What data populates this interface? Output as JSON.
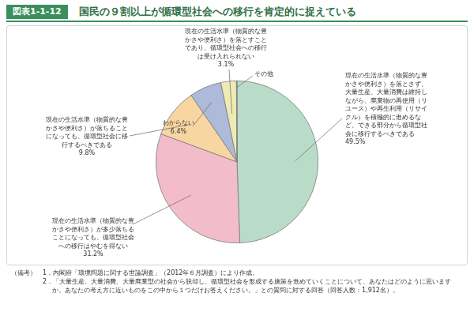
{
  "chart_data": {
    "type": "pie",
    "figure_number": "図表1-1-12",
    "title": "国民の９割以上が循環型社会への移行を肯定的に捉えている",
    "categories": [
      "現在の生活水準（物質的な豊\nかさや便利さ）を落とさず、\n大量生産、大量消費は維持し\nながら、廃棄物の再使用（リ\nユース）や再生利用（リサイ\nクル）を積極的に進めるな\nど、できる部分から循環型社\n会に移行するべきである",
      "現在の生活水準（物質的な豊\nかさや便利さ）が多少落ちる\nことになっても、循環型社会\nへの移行はやむを得ない",
      "現在の生活水準（物質的な豊\nかさや便利さ）が落ちること\nになっても、循環型社会に移\n行するべきである",
      "わからない",
      "現在の生活水準（物質的な豊\nかさや便利さ）を落とすこと\nであり、循環型社会への移行\nは受け入れられない",
      "その他"
    ],
    "values": [
      49.5,
      31.2,
      9.8,
      6.4,
      3.1,
      0.1
    ],
    "value_labels": [
      "49.5%",
      "31.2%",
      "9.8%",
      "6.4%",
      "3.1%",
      null
    ],
    "colors": [
      "#b9dcc8",
      "#f3bccb",
      "#f8d6a2",
      "#aebada",
      "#eeeab4",
      "#f4f4ec"
    ],
    "data_labels": true,
    "notes": {
      "heading": "（備考）",
      "items": [
        "1．内閣府「環境問題に関する世論調査」（2012年６月調査）により作成。",
        "2．「大量生産、大量消費、大量廃棄型の社会から脱却し、循環型社会を形成する施策を進めていくことについて、あなたはどのように思いますか。あなたの考え方に近いものをこの中から１つだけお答えください。」との質問に対する回答（回答人数：1,912名）。"
      ]
    }
  }
}
